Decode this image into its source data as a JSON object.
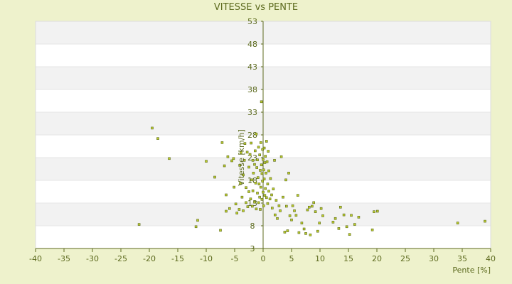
{
  "chart_data": {
    "type": "scatter",
    "title": "VITESSE vs PENTE",
    "xlabel": "Pente [%]",
    "ylabel": "Vitesse [km/h]",
    "xlim": [
      -40,
      40
    ],
    "ylim": [
      3,
      53
    ],
    "xticks": [
      -40,
      -35,
      -30,
      -25,
      -20,
      -15,
      -10,
      -5,
      0,
      5,
      10,
      15,
      20,
      25,
      30,
      35,
      40
    ],
    "yticks": [
      3,
      8,
      13,
      18,
      23,
      28,
      33,
      38,
      43,
      48,
      53
    ],
    "grid": "horizontal alternating bands",
    "legend": "none",
    "colors": {
      "background": "#eef2cc",
      "plot_band_light": "#ffffff",
      "plot_band_dark": "#f2f2f2",
      "axis": "#5c6a1e",
      "marker_fill": "#bccc2a",
      "marker_stroke": "#5c6a1e",
      "text": "#5c6a1e"
    },
    "series": [
      {
        "points": [
          [
            -19.5,
            29.5
          ],
          [
            -18.5,
            27.2
          ],
          [
            -16.5,
            22.8
          ],
          [
            -21.8,
            8.3
          ],
          [
            -11.8,
            7.8
          ],
          [
            -11.5,
            9.2
          ],
          [
            -10,
            22.2
          ],
          [
            -8.5,
            18.7
          ],
          [
            -7.5,
            7
          ],
          [
            -7.2,
            26.3
          ],
          [
            -6.8,
            21.2
          ],
          [
            -6.5,
            14.8
          ],
          [
            -6.5,
            11.2
          ],
          [
            -6.2,
            23.2
          ],
          [
            -5.9,
            11.8
          ],
          [
            -5.5,
            22.3
          ],
          [
            -5.2,
            22.8
          ],
          [
            -5.1,
            16.5
          ],
          [
            -4.8,
            12.8
          ],
          [
            -4.6,
            10.8
          ],
          [
            -4.2,
            11.6
          ],
          [
            -4.1,
            21.3
          ],
          [
            -4,
            17.3
          ],
          [
            -3.9,
            24.1
          ],
          [
            -3.7,
            14.3
          ],
          [
            -3.5,
            11.3
          ],
          [
            -3.5,
            19.2
          ],
          [
            -3.3,
            22.4
          ],
          [
            -3.2,
            26.1
          ],
          [
            -3,
            13.1
          ],
          [
            -3,
            16.4
          ],
          [
            -2.8,
            24.2
          ],
          [
            -2.7,
            12.2
          ],
          [
            -2.5,
            20.9
          ],
          [
            -2.5,
            15.5
          ],
          [
            -2.3,
            23.7
          ],
          [
            -2.2,
            13.9
          ],
          [
            -2.1,
            26.2
          ],
          [
            -2,
            18.1
          ],
          [
            -1.9,
            12.3
          ],
          [
            -1.8,
            22.4
          ],
          [
            -1.8,
            15.7
          ],
          [
            -1.7,
            19.6
          ],
          [
            -1.5,
            21.5
          ],
          [
            -1.5,
            13.2
          ],
          [
            -1.4,
            24.5
          ],
          [
            -1.3,
            17.4
          ],
          [
            -1.2,
            11.7
          ],
          [
            -1.2,
            28.2
          ],
          [
            -1.1,
            20.8
          ],
          [
            -1,
            15.2
          ],
          [
            -1,
            22.5
          ],
          [
            -0.9,
            18.6
          ],
          [
            -0.8,
            13.1
          ],
          [
            -0.8,
            25.3
          ],
          [
            -0.7,
            17.2
          ],
          [
            -0.6,
            23.6
          ],
          [
            -0.6,
            14.3
          ],
          [
            -0.5,
            20.2
          ],
          [
            -0.5,
            11.6
          ],
          [
            -0.4,
            26.3
          ],
          [
            -0.4,
            16.5
          ],
          [
            -0.3,
            21.4
          ],
          [
            -0.3,
            35.3
          ],
          [
            -0.2,
            13.8
          ],
          [
            -0.2,
            19.5
          ],
          [
            -0.1,
            24.8
          ],
          [
            -0.1,
            17.8
          ],
          [
            0,
            22.6
          ],
          [
            0,
            15.4
          ],
          [
            0.1,
            20.3
          ],
          [
            0.1,
            12.4
          ],
          [
            0.2,
            25.1
          ],
          [
            0.2,
            18.3
          ],
          [
            0.3,
            21.9
          ],
          [
            0.3,
            14.7
          ],
          [
            0.4,
            23.3
          ],
          [
            0.4,
            16.2
          ],
          [
            0.5,
            19.6
          ],
          [
            0.6,
            26.6
          ],
          [
            0.6,
            14.2
          ],
          [
            0.7,
            22.1
          ],
          [
            0.8,
            17.2
          ],
          [
            0.8,
            12.9
          ],
          [
            0.9,
            24.4
          ],
          [
            1,
            15.6
          ],
          [
            1,
            20.1
          ],
          [
            1.2,
            13.9
          ],
          [
            1.3,
            18.4
          ],
          [
            1.5,
            14.8
          ],
          [
            1.6,
            11.9
          ],
          [
            1.8,
            16.1
          ],
          [
            2,
            22.4
          ],
          [
            2.1,
            10.4
          ],
          [
            2.3,
            13.6
          ],
          [
            2.5,
            9.6
          ],
          [
            2.8,
            12.4
          ],
          [
            3,
            11.3
          ],
          [
            3.2,
            23.2
          ],
          [
            3.5,
            14.3
          ],
          [
            3.8,
            6.6
          ],
          [
            4,
            18.1
          ],
          [
            4.1,
            12.3
          ],
          [
            4.3,
            6.9
          ],
          [
            4.5,
            19.6
          ],
          [
            4.7,
            10.2
          ],
          [
            5,
            9.3
          ],
          [
            5.2,
            12.4
          ],
          [
            5.5,
            11.3
          ],
          [
            5.8,
            10.3
          ],
          [
            6.1,
            14.7
          ],
          [
            6.3,
            6.5
          ],
          [
            6.8,
            8.6
          ],
          [
            7.2,
            7.3
          ],
          [
            7.5,
            6.3
          ],
          [
            7.8,
            11.5
          ],
          [
            8.1,
            12.1
          ],
          [
            8.3,
            6
          ],
          [
            8.6,
            12.3
          ],
          [
            8.9,
            13.1
          ],
          [
            9.2,
            11.1
          ],
          [
            9.6,
            6.8
          ],
          [
            9.9,
            8.6
          ],
          [
            10.2,
            11.8
          ],
          [
            10.5,
            10.2
          ],
          [
            12.3,
            8.8
          ],
          [
            12.7,
            9.6
          ],
          [
            13.3,
            7.4
          ],
          [
            13.6,
            12.1
          ],
          [
            14.2,
            10.4
          ],
          [
            14.7,
            7.8
          ],
          [
            15.2,
            6.1
          ],
          [
            15.5,
            10.3
          ],
          [
            16.1,
            8.3
          ],
          [
            16.8,
            9.9
          ],
          [
            19.2,
            7.1
          ],
          [
            19.5,
            11.1
          ],
          [
            20.1,
            11.2
          ],
          [
            34.2,
            8.6
          ],
          [
            39,
            9
          ]
        ]
      }
    ]
  }
}
